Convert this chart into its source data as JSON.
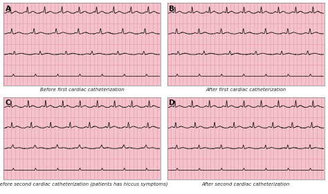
{
  "panel_labels": [
    "A",
    "B",
    "C",
    "D"
  ],
  "captions": [
    "Before first cardiac catheterization",
    "After first cardiac catheterization",
    "Before second cardiac catheterization (patients has hiccus symptoms)",
    "After second cardiac catheterization"
  ],
  "bg_color": "#f7c8d0",
  "grid_major_color": "#e8a0b0",
  "grid_minor_color": "#f0b8c4",
  "ekg_color": "#111111",
  "label_color": "#111111",
  "caption_color": "#222222",
  "fig_bg": "#ffffff",
  "border_color": "#888888",
  "ekg_linewidth": 0.55,
  "grid_rows": 4,
  "grid_cols": 40,
  "caption_fontsize": 5.0,
  "label_fontsize": 7.5
}
